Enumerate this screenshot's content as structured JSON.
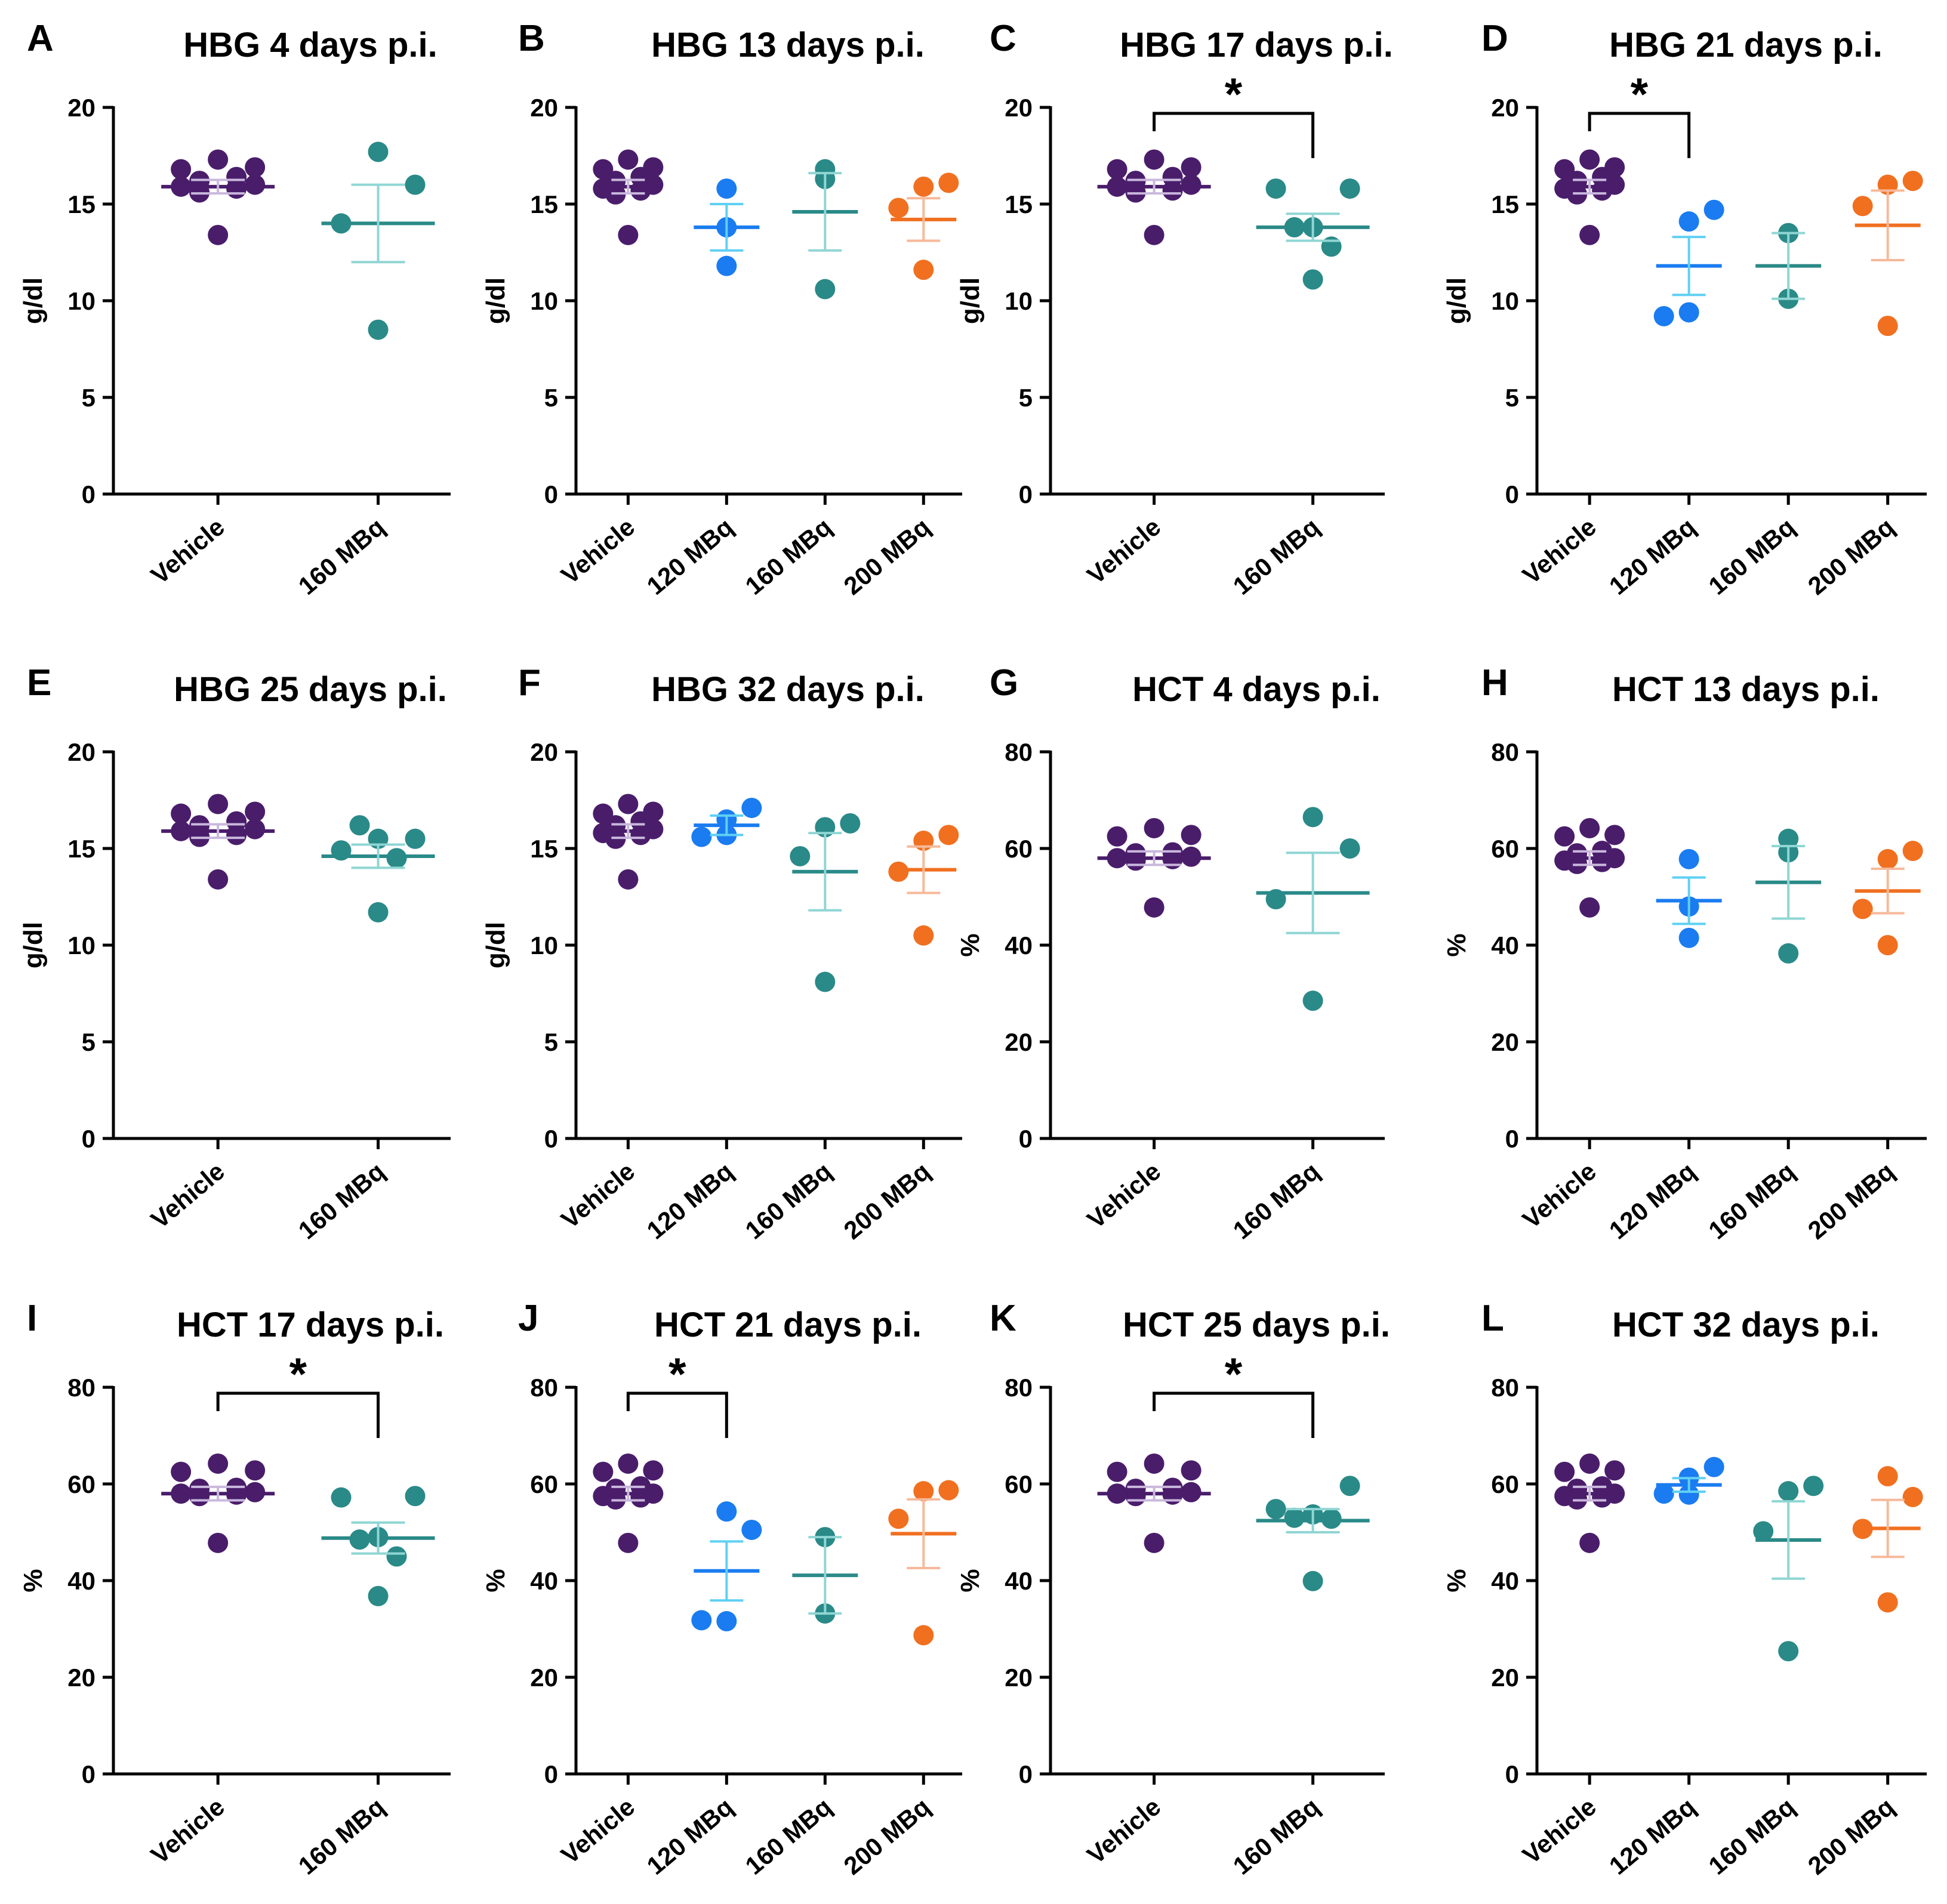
{
  "figure": {
    "colors": {
      "Vehicle": "#4a1d6b",
      "120 MBq": "#1a7cf0",
      "160 MBq": "#2a8a88",
      "200 MBq": "#f07020",
      "err_Vehicle": "#c9b8dc",
      "err_120 MBq": "#5fd0f4",
      "err_160 MBq": "#8fd6d4",
      "err_200 MBq": "#f7b99a"
    }
  },
  "chart_data": [
    {
      "panel": "A",
      "title": "HBG 4 days p.i.",
      "type": "scatter",
      "ylabel": "g/dl",
      "ylim": [
        0,
        20
      ],
      "yticks": [
        "0",
        "5",
        "10",
        "15",
        "20"
      ],
      "categories": [
        "Vehicle",
        "160 MBq"
      ],
      "series": [
        {
          "name": "Vehicle",
          "values": [
            13.4,
            15.6,
            15.8,
            15.9,
            16.0,
            16.2,
            16.4,
            16.8,
            16.9,
            17.3
          ],
          "mean": 15.9,
          "sem": 0.35
        },
        {
          "name": "160 MBq",
          "values": [
            17.7,
            16.0,
            14.0,
            8.5
          ],
          "mean": 14.0,
          "sem": 2.0
        }
      ],
      "significance": null
    },
    {
      "panel": "B",
      "title": "HBG 13 days p.i.",
      "type": "scatter",
      "ylabel": "g/dl",
      "ylim": [
        0,
        20
      ],
      "yticks": [
        "0",
        "5",
        "10",
        "15",
        "20"
      ],
      "categories": [
        "Vehicle",
        "120 MBq",
        "160 MBq",
        "200 MBq"
      ],
      "series": [
        {
          "name": "Vehicle",
          "values": [
            13.4,
            15.5,
            15.7,
            15.8,
            16.0,
            16.2,
            16.4,
            16.8,
            16.9,
            17.3
          ],
          "mean": 15.9,
          "sem": 0.35
        },
        {
          "name": "120 MBq",
          "values": [
            15.8,
            13.8,
            11.8
          ],
          "mean": 13.8,
          "sem": 1.2
        },
        {
          "name": "160 MBq",
          "values": [
            16.8,
            16.3,
            10.6
          ],
          "mean": 14.6,
          "sem": 2.0
        },
        {
          "name": "200 MBq",
          "values": [
            15.9,
            16.1,
            14.8,
            11.6
          ],
          "mean": 14.2,
          "sem": 1.1
        }
      ],
      "significance": null
    },
    {
      "panel": "C",
      "title": "HBG 17 days p.i.",
      "type": "scatter",
      "ylabel": "g/dl",
      "ylim": [
        0,
        20
      ],
      "yticks": [
        "0",
        "5",
        "10",
        "15",
        "20"
      ],
      "categories": [
        "Vehicle",
        "160 MBq"
      ],
      "series": [
        {
          "name": "Vehicle",
          "values": [
            13.4,
            15.6,
            15.7,
            15.9,
            16.0,
            16.2,
            16.4,
            16.8,
            16.9,
            17.3
          ],
          "mean": 15.9,
          "sem": 0.35
        },
        {
          "name": "160 MBq",
          "values": [
            15.8,
            15.8,
            13.8,
            13.8,
            12.8,
            11.1
          ],
          "mean": 13.8,
          "sem": 0.7
        }
      ],
      "significance": {
        "from": 0,
        "to": 1,
        "label": "*"
      }
    },
    {
      "panel": "D",
      "title": "HBG 21 days p.i.",
      "type": "scatter",
      "ylabel": "g/dl",
      "ylim": [
        0,
        20
      ],
      "yticks": [
        "0",
        "5",
        "10",
        "15",
        "20"
      ],
      "categories": [
        "Vehicle",
        "120 MBq",
        "160 MBq",
        "200 MBq"
      ],
      "series": [
        {
          "name": "Vehicle",
          "values": [
            13.4,
            15.5,
            15.7,
            15.8,
            16.0,
            16.2,
            16.4,
            16.8,
            16.9,
            17.3
          ],
          "mean": 15.9,
          "sem": 0.35
        },
        {
          "name": "120 MBq",
          "values": [
            14.1,
            14.7,
            9.2,
            9.4
          ],
          "mean": 11.8,
          "sem": 1.5
        },
        {
          "name": "160 MBq",
          "values": [
            13.5,
            10.1
          ],
          "mean": 11.8,
          "sem": 1.7
        },
        {
          "name": "200 MBq",
          "values": [
            16.0,
            16.2,
            14.9,
            8.7
          ],
          "mean": 13.9,
          "sem": 1.8
        }
      ],
      "significance": {
        "from": 0,
        "to": 1,
        "label": "*"
      }
    },
    {
      "panel": "E",
      "title": "HBG 25 days p.i.",
      "type": "scatter",
      "ylabel": "g/dl",
      "ylim": [
        0,
        20
      ],
      "yticks": [
        "0",
        "5",
        "10",
        "15",
        "20"
      ],
      "categories": [
        "Vehicle",
        "160 MBq"
      ],
      "series": [
        {
          "name": "Vehicle",
          "values": [
            13.4,
            15.6,
            15.7,
            15.9,
            16.0,
            16.2,
            16.4,
            16.8,
            16.9,
            17.3
          ],
          "mean": 15.9,
          "sem": 0.35
        },
        {
          "name": "160 MBq",
          "values": [
            14.9,
            15.5,
            15.5,
            16.2,
            14.5,
            11.7
          ],
          "mean": 14.6,
          "sem": 0.6
        }
      ],
      "significance": null
    },
    {
      "panel": "F",
      "title": "HBG 32 days p.i.",
      "type": "scatter",
      "ylabel": "g/dl",
      "ylim": [
        0,
        20
      ],
      "yticks": [
        "0",
        "5",
        "10",
        "15",
        "20"
      ],
      "categories": [
        "Vehicle",
        "120 MBq",
        "160 MBq",
        "200 MBq"
      ],
      "series": [
        {
          "name": "Vehicle",
          "values": [
            13.4,
            15.5,
            15.7,
            15.8,
            16.0,
            16.2,
            16.4,
            16.8,
            16.9,
            17.3
          ],
          "mean": 15.9,
          "sem": 0.35
        },
        {
          "name": "120 MBq",
          "values": [
            16.5,
            17.1,
            15.6,
            15.7
          ],
          "mean": 16.2,
          "sem": 0.5
        },
        {
          "name": "160 MBq",
          "values": [
            16.1,
            16.3,
            14.6,
            8.1
          ],
          "mean": 13.8,
          "sem": 2.0
        },
        {
          "name": "200 MBq",
          "values": [
            15.4,
            15.7,
            13.8,
            10.5
          ],
          "mean": 13.9,
          "sem": 1.2
        }
      ],
      "significance": null
    },
    {
      "panel": "G",
      "title": "HCT 4 days p.i.",
      "type": "scatter",
      "ylabel": "%",
      "ylim": [
        0,
        80
      ],
      "yticks": [
        "0",
        "20",
        "40",
        "60",
        "80"
      ],
      "categories": [
        "Vehicle",
        "160 MBq"
      ],
      "series": [
        {
          "name": "Vehicle",
          "values": [
            47.8,
            57.5,
            57.8,
            58.0,
            58.3,
            59.0,
            59.2,
            62.5,
            62.8,
            64.2
          ],
          "mean": 58.0,
          "sem": 1.4
        },
        {
          "name": "160 MBq",
          "values": [
            66.5,
            60.0,
            49.5,
            28.5
          ],
          "mean": 50.8,
          "sem": 8.3
        }
      ],
      "significance": null
    },
    {
      "panel": "H",
      "title": "HCT 13 days p.i.",
      "type": "scatter",
      "ylabel": "%",
      "ylim": [
        0,
        80
      ],
      "yticks": [
        "0",
        "20",
        "40",
        "60",
        "80"
      ],
      "categories": [
        "Vehicle",
        "120 MBq",
        "160 MBq",
        "200 MBq"
      ],
      "series": [
        {
          "name": "Vehicle",
          "values": [
            47.8,
            56.8,
            57.2,
            57.5,
            58.0,
            59.0,
            59.5,
            62.5,
            62.8,
            64.2
          ],
          "mean": 58.0,
          "sem": 1.4
        },
        {
          "name": "120 MBq",
          "values": [
            57.8,
            48.0,
            41.5
          ],
          "mean": 49.2,
          "sem": 4.8
        },
        {
          "name": "160 MBq",
          "values": [
            62.0,
            59.2,
            38.3
          ],
          "mean": 53.0,
          "sem": 7.5
        },
        {
          "name": "200 MBq",
          "values": [
            57.8,
            59.5,
            47.5,
            40.0
          ],
          "mean": 51.2,
          "sem": 4.6
        }
      ],
      "significance": null
    },
    {
      "panel": "I",
      "title": "HCT 17 days p.i.",
      "type": "scatter",
      "ylabel": "%",
      "ylim": [
        0,
        80
      ],
      "yticks": [
        "0",
        "20",
        "40",
        "60",
        "80"
      ],
      "categories": [
        "Vehicle",
        "160 MBq"
      ],
      "series": [
        {
          "name": "Vehicle",
          "values": [
            47.8,
            57.5,
            57.8,
            58.0,
            58.3,
            59.0,
            59.2,
            62.5,
            62.8,
            64.2
          ],
          "mean": 58.0,
          "sem": 1.4
        },
        {
          "name": "160 MBq",
          "values": [
            57.2,
            57.5,
            49.0,
            48.5,
            45.0,
            36.8
          ],
          "mean": 48.8,
          "sem": 3.2
        }
      ],
      "significance": {
        "from": 0,
        "to": 1,
        "label": "*"
      }
    },
    {
      "panel": "J",
      "title": "HCT 21 days p.i.",
      "type": "scatter",
      "ylabel": "%",
      "ylim": [
        0,
        80
      ],
      "yticks": [
        "0",
        "20",
        "40",
        "60",
        "80"
      ],
      "categories": [
        "Vehicle",
        "120 MBq",
        "160 MBq",
        "200 MBq"
      ],
      "series": [
        {
          "name": "Vehicle",
          "values": [
            47.8,
            56.8,
            57.2,
            57.5,
            58.0,
            59.0,
            59.5,
            62.5,
            62.8,
            64.2
          ],
          "mean": 58.0,
          "sem": 1.4
        },
        {
          "name": "120 MBq",
          "values": [
            54.3,
            50.5,
            31.8,
            31.6
          ],
          "mean": 42.0,
          "sem": 6.1
        },
        {
          "name": "160 MBq",
          "values": [
            49.0,
            33.2
          ],
          "mean": 41.1,
          "sem": 7.9
        },
        {
          "name": "200 MBq",
          "values": [
            58.5,
            58.7,
            52.8,
            28.7
          ],
          "mean": 49.7,
          "sem": 7.1
        }
      ],
      "significance": {
        "from": 0,
        "to": 1,
        "label": "*"
      }
    },
    {
      "panel": "K",
      "title": "HCT 25 days p.i.",
      "type": "scatter",
      "ylabel": "%",
      "ylim": [
        0,
        80
      ],
      "yticks": [
        "0",
        "20",
        "40",
        "60",
        "80"
      ],
      "categories": [
        "Vehicle",
        "160 MBq"
      ],
      "series": [
        {
          "name": "Vehicle",
          "values": [
            47.8,
            57.5,
            57.8,
            58.0,
            58.3,
            59.0,
            59.2,
            62.5,
            62.8,
            64.2
          ],
          "mean": 58.0,
          "sem": 1.4
        },
        {
          "name": "160 MBq",
          "values": [
            54.8,
            59.6,
            53.7,
            53.0,
            52.8,
            39.9
          ],
          "mean": 52.4,
          "sem": 2.4
        }
      ],
      "significance": {
        "from": 0,
        "to": 1,
        "label": "*"
      }
    },
    {
      "panel": "L",
      "title": "HCT 32 days p.i.",
      "type": "scatter",
      "ylabel": "%",
      "ylim": [
        0,
        80
      ],
      "yticks": [
        "0",
        "20",
        "40",
        "60",
        "80"
      ],
      "categories": [
        "Vehicle",
        "120 MBq",
        "160 MBq",
        "200 MBq"
      ],
      "series": [
        {
          "name": "Vehicle",
          "values": [
            47.8,
            56.8,
            57.2,
            57.5,
            58.0,
            59.0,
            59.5,
            62.5,
            62.8,
            64.2
          ],
          "mean": 58.0,
          "sem": 1.4
        },
        {
          "name": "120 MBq",
          "values": [
            61.3,
            63.5,
            58.0,
            57.8
          ],
          "mean": 59.8,
          "sem": 1.4
        },
        {
          "name": "160 MBq",
          "values": [
            58.5,
            59.6,
            50.2,
            25.4
          ],
          "mean": 48.4,
          "sem": 8.0
        },
        {
          "name": "200 MBq",
          "values": [
            61.6,
            57.3,
            50.7,
            35.5
          ],
          "mean": 50.8,
          "sem": 5.9
        }
      ],
      "significance": null
    }
  ]
}
